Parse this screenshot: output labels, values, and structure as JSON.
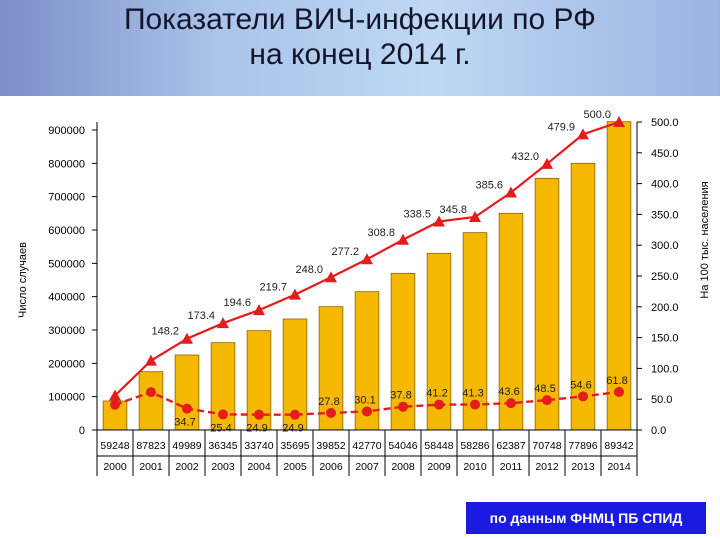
{
  "title_lines": [
    "Показатели ВИЧ-инфекции по РФ",
    "на конец 2014 г."
  ],
  "source": "по данным ФНМЦ ПБ СПИД",
  "colors": {
    "bar": "#f5b800",
    "bar_stroke": "#8a6500",
    "line": "#e31c1c",
    "header": "#a9c3ea",
    "source_bg": "#1a1ae0"
  },
  "chart_data": {
    "type": "bar",
    "ylabel": "Число случаев",
    "y2label": "На 100 тыс. населения",
    "ylim": [
      0,
      900000
    ],
    "y_ticks": [
      "0",
      "100000",
      "200000",
      "300000",
      "400000",
      "500000",
      "600000",
      "700000",
      "800000",
      "900000"
    ],
    "y2lim": [
      0,
      500
    ],
    "y2_ticks": [
      "0.0",
      "50.0",
      "100.0",
      "150.0",
      "200.0",
      "250.0",
      "300.0",
      "350.0",
      "400.0",
      "450.0",
      "500.0"
    ],
    "categories": [
      "2000",
      "2001",
      "2002",
      "2003",
      "2004",
      "2005",
      "2006",
      "2007",
      "2008",
      "2009",
      "2010",
      "2011",
      "2012",
      "2013",
      "2014"
    ],
    "bar_values": [
      87000,
      175000,
      225000,
      262000,
      298000,
      333000,
      370000,
      415000,
      470000,
      530000,
      592000,
      650000,
      755000,
      800000,
      925000
    ],
    "table_values": [
      "59248",
      "87823",
      "49989",
      "36345",
      "33740",
      "35695",
      "39852",
      "42770",
      "54046",
      "58448",
      "58286",
      "62387",
      "70748",
      "77896",
      "89342"
    ],
    "series": [
      {
        "values": [
          56,
          112.6,
          148.2,
          173.4,
          194.6,
          219.7,
          248.0,
          277.2,
          308.8,
          338.5,
          345.8,
          385.6,
          432.0,
          479.9,
          500.0
        ],
        "labels": [
          "",
          "",
          "148.2",
          "173.4",
          "194.6",
          "219.7",
          "248.0",
          "277.2",
          "308.8",
          "338.5",
          "345.8",
          "385.6",
          "432.0",
          "479.9",
          "500.0"
        ]
      },
      {
        "values": [
          41,
          61.5,
          34.7,
          25.4,
          24.9,
          24.9,
          27.8,
          30.1,
          37.8,
          41.2,
          41.3,
          43.6,
          48.5,
          54.6,
          61.8
        ],
        "labels": [
          "",
          "",
          "34.7",
          "25.4",
          "24.9",
          "24.9",
          "27.8",
          "30.1",
          "37.8",
          "41.2",
          "41.3",
          "43.6",
          "48.5",
          "54.6",
          "61.8"
        ]
      }
    ]
  }
}
